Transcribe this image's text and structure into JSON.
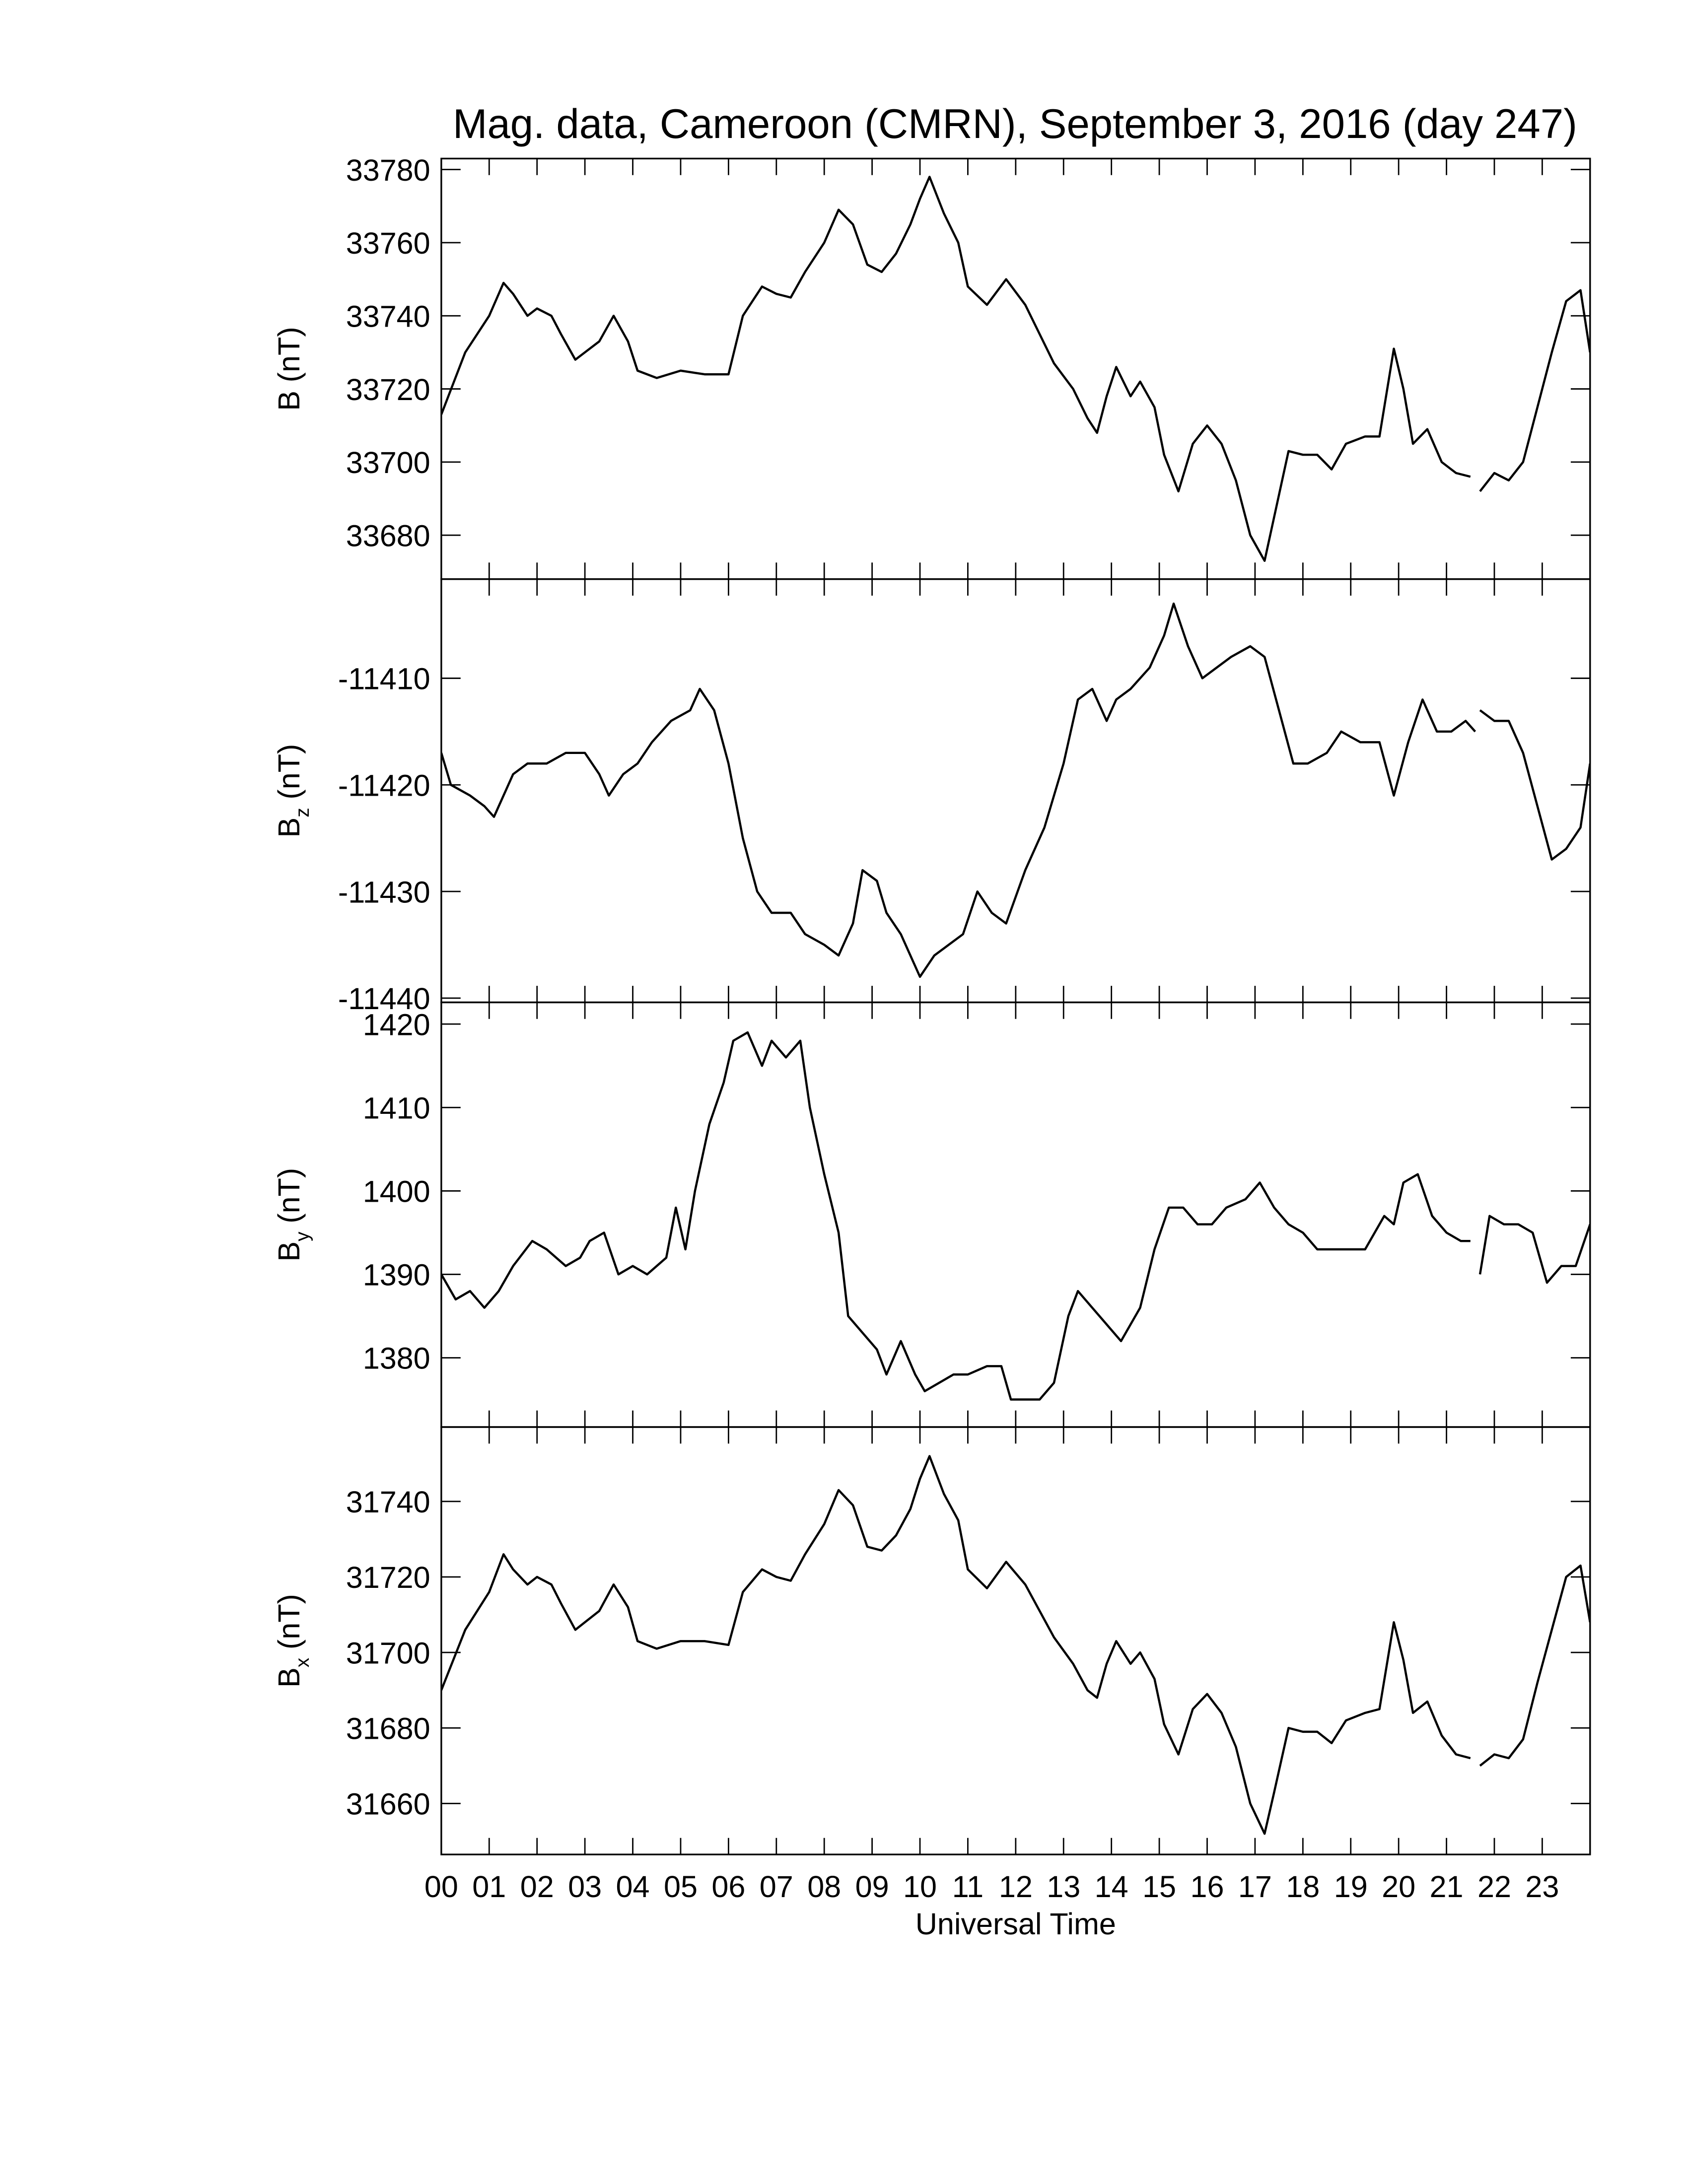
{
  "title": "Mag. data, Cameroon (CMRN), September 3, 2016 (day 247)",
  "chart_data": [
    {
      "type": "line",
      "ylabel_symbol": "B",
      "ylabel_units": "(nT)",
      "xlim": [
        0,
        24
      ],
      "ylim": [
        33668,
        33783
      ],
      "yticks": [
        33680,
        33700,
        33720,
        33740,
        33760,
        33780
      ],
      "color": "#000000",
      "x": [
        0,
        0.5,
        1,
        1.3,
        1.5,
        1.8,
        2.0,
        2.3,
        2.5,
        2.8,
        3.0,
        3.3,
        3.6,
        3.9,
        4.1,
        4.5,
        5.0,
        5.5,
        6.0,
        6.3,
        6.7,
        7.0,
        7.3,
        7.6,
        8.0,
        8.3,
        8.6,
        8.9,
        9.2,
        9.5,
        9.8,
        10.0,
        10.2,
        10.5,
        10.8,
        11.0,
        11.4,
        11.8,
        12.2,
        12.5,
        12.8,
        13.2,
        13.5,
        13.7,
        13.9,
        14.1,
        14.4,
        14.6,
        14.9,
        15.1,
        15.4,
        15.7,
        16.0,
        16.3,
        16.6,
        16.9,
        17.2,
        17.4,
        17.7,
        18.0,
        18.3,
        18.6,
        18.9,
        19.3,
        19.6,
        19.9,
        20.1,
        20.3,
        20.6,
        20.9,
        21.2,
        21.5,
        21.6,
        21.7,
        22.0,
        22.3,
        22.6,
        22.9,
        23.2,
        23.5,
        23.8,
        24.0
      ],
      "values": [
        33713,
        33730,
        33740,
        33749,
        33746,
        33740,
        33742,
        33740,
        33735,
        33728,
        33730,
        33733,
        33740,
        33733,
        33725,
        33723,
        33725,
        33724,
        33724,
        33740,
        33748,
        33746,
        33745,
        33752,
        33760,
        33769,
        33765,
        33754,
        33752,
        33757,
        33765,
        33772,
        33778,
        33768,
        33760,
        33748,
        33743,
        33750,
        33743,
        33735,
        33727,
        33720,
        33712,
        33708,
        33718,
        33726,
        33718,
        33722,
        33715,
        33702,
        33692,
        33705,
        33710,
        33705,
        33695,
        33680,
        33673,
        33685,
        33703,
        33702,
        33702,
        33698,
        33705,
        33707,
        33707,
        33731,
        33720,
        33705,
        33709,
        33700,
        33697,
        33696,
        null,
        33692,
        33697,
        33695,
        33700,
        33715,
        33730,
        33744,
        33747,
        33730
      ]
    },
    {
      "type": "line",
      "ylabel_symbol": "B",
      "ylabel_subscript": "z",
      "ylabel_units": "(nT)",
      "xlim": [
        0,
        24
      ],
      "ylim": [
        -11440.4,
        -11400.7
      ],
      "yticks": [
        -11440,
        -11430,
        -11420,
        -11410
      ],
      "color": "#000000",
      "x": [
        0,
        0.2,
        0.6,
        0.9,
        1.1,
        1.5,
        1.8,
        2.2,
        2.6,
        3.0,
        3.3,
        3.5,
        3.8,
        4.1,
        4.4,
        4.8,
        5.2,
        5.4,
        5.7,
        6.0,
        6.3,
        6.6,
        6.9,
        7.3,
        7.6,
        8.0,
        8.3,
        8.6,
        8.8,
        9.1,
        9.3,
        9.6,
        10.0,
        10.3,
        10.6,
        10.9,
        11.2,
        11.5,
        11.8,
        12.2,
        12.6,
        13.0,
        13.3,
        13.6,
        13.9,
        14.1,
        14.4,
        14.8,
        15.1,
        15.3,
        15.6,
        15.9,
        16.2,
        16.5,
        16.9,
        17.2,
        17.5,
        17.8,
        18.1,
        18.5,
        18.8,
        19.2,
        19.6,
        19.9,
        20.2,
        20.5,
        20.8,
        21.1,
        21.4,
        21.6,
        21.65,
        21.7,
        22.0,
        22.3,
        22.6,
        22.9,
        23.2,
        23.5,
        23.8,
        24.0
      ],
      "values": [
        -11417,
        -11420,
        -11421,
        -11422,
        -11423,
        -11419,
        -11418,
        -11418,
        -11417,
        -11417,
        -11419,
        -11421,
        -11419,
        -11418,
        -11416,
        -11414,
        -11413,
        -11411,
        -11413,
        -11418,
        -11425,
        -11430,
        -11432,
        -11432,
        -11434,
        -11435,
        -11436,
        -11433,
        -11428,
        -11429,
        -11432,
        -11434,
        -11438,
        -11436,
        -11435,
        -11434,
        -11430,
        -11432,
        -11433,
        -11428,
        -11424,
        -11418,
        -11412,
        -11411,
        -11414,
        -11412,
        -11411,
        -11409,
        -11406,
        -11403,
        -11407,
        -11410,
        -11409,
        -11408,
        -11407,
        -11408,
        -11413,
        -11418,
        -11418,
        -11417,
        -11415,
        -11416,
        -11416,
        -11421,
        -11416,
        -11412,
        -11415,
        -11415,
        -11414,
        -11415,
        null,
        -11413,
        -11414,
        -11414,
        -11417,
        -11422,
        -11427,
        -11426,
        -11424,
        -11418
      ]
    },
    {
      "type": "line",
      "ylabel_symbol": "B",
      "ylabel_subscript": "y",
      "ylabel_units": "(nT)",
      "xlim": [
        0,
        24
      ],
      "ylim": [
        1371.7,
        1422.6
      ],
      "yticks": [
        1380,
        1390,
        1400,
        1410,
        1420
      ],
      "color": "#000000",
      "x": [
        0,
        0.3,
        0.6,
        0.9,
        1.2,
        1.5,
        1.9,
        2.2,
        2.6,
        2.9,
        3.1,
        3.4,
        3.7,
        4.0,
        4.3,
        4.7,
        4.9,
        5.1,
        5.3,
        5.6,
        5.9,
        6.1,
        6.4,
        6.7,
        6.9,
        7.2,
        7.5,
        7.7,
        8.0,
        8.3,
        8.5,
        8.8,
        9.1,
        9.3,
        9.6,
        9.9,
        10.1,
        10.4,
        10.7,
        11.0,
        11.4,
        11.7,
        11.9,
        12.2,
        12.5,
        12.8,
        13.1,
        13.3,
        13.6,
        13.9,
        14.2,
        14.6,
        14.9,
        15.2,
        15.5,
        15.8,
        16.1,
        16.4,
        16.8,
        17.1,
        17.4,
        17.7,
        18.0,
        18.3,
        18.6,
        18.9,
        19.3,
        19.7,
        19.9,
        20.1,
        20.4,
        20.7,
        21.0,
        21.3,
        21.5,
        21.6,
        21.7,
        21.9,
        22.2,
        22.5,
        22.8,
        23.1,
        23.4,
        23.7,
        24.0
      ],
      "values": [
        1390,
        1387,
        1388,
        1386,
        1388,
        1391,
        1394,
        1393,
        1391,
        1392,
        1394,
        1395,
        1390,
        1391,
        1390,
        1392,
        1398,
        1393,
        1400,
        1408,
        1413,
        1418,
        1419,
        1415,
        1418,
        1416,
        1418,
        1410,
        1402,
        1395,
        1385,
        1383,
        1381,
        1378,
        1382,
        1378,
        1376,
        1377,
        1378,
        1378,
        1379,
        1379,
        1375,
        1375,
        1375,
        1377,
        1385,
        1388,
        1386,
        1384,
        1382,
        1386,
        1393,
        1398,
        1398,
        1396,
        1396,
        1398,
        1399,
        1401,
        1398,
        1396,
        1395,
        1393,
        1393,
        1393,
        1393,
        1397,
        1396,
        1401,
        1402,
        1397,
        1395,
        1394,
        1394,
        null,
        1390,
        1397,
        1396,
        1396,
        1395,
        1389,
        1391,
        1391,
        1396
      ]
    },
    {
      "type": "line",
      "ylabel_symbol": "B",
      "ylabel_subscript": "x",
      "ylabel_units": "(nT)",
      "xlabel": "Universal Time",
      "xlim": [
        0,
        24
      ],
      "ylim": [
        31646.5,
        31759.7
      ],
      "yticks": [
        31660,
        31680,
        31700,
        31720,
        31740
      ],
      "xticks": [
        {
          "value": 0,
          "label": "00"
        },
        {
          "value": 1,
          "label": "01"
        },
        {
          "value": 2,
          "label": "02"
        },
        {
          "value": 3,
          "label": "03"
        },
        {
          "value": 4,
          "label": "04"
        },
        {
          "value": 5,
          "label": "05"
        },
        {
          "value": 6,
          "label": "06"
        },
        {
          "value": 7,
          "label": "07"
        },
        {
          "value": 8,
          "label": "08"
        },
        {
          "value": 9,
          "label": "09"
        },
        {
          "value": 10,
          "label": "10"
        },
        {
          "value": 11,
          "label": "11"
        },
        {
          "value": 12,
          "label": "12"
        },
        {
          "value": 13,
          "label": "13"
        },
        {
          "value": 14,
          "label": "14"
        },
        {
          "value": 15,
          "label": "15"
        },
        {
          "value": 16,
          "label": "16"
        },
        {
          "value": 17,
          "label": "17"
        },
        {
          "value": 18,
          "label": "18"
        },
        {
          "value": 19,
          "label": "19"
        },
        {
          "value": 20,
          "label": "20"
        },
        {
          "value": 21,
          "label": "21"
        },
        {
          "value": 22,
          "label": "22"
        },
        {
          "value": 23,
          "label": "23"
        }
      ],
      "color": "#000000",
      "x": [
        0,
        0.5,
        1,
        1.3,
        1.5,
        1.8,
        2.0,
        2.3,
        2.5,
        2.8,
        3.0,
        3.3,
        3.6,
        3.9,
        4.1,
        4.5,
        5.0,
        5.5,
        6.0,
        6.3,
        6.7,
        7.0,
        7.3,
        7.6,
        8.0,
        8.3,
        8.6,
        8.9,
        9.2,
        9.5,
        9.8,
        10.0,
        10.2,
        10.5,
        10.8,
        11.0,
        11.4,
        11.8,
        12.2,
        12.5,
        12.8,
        13.2,
        13.5,
        13.7,
        13.9,
        14.1,
        14.4,
        14.6,
        14.9,
        15.1,
        15.4,
        15.7,
        16.0,
        16.3,
        16.6,
        16.9,
        17.2,
        17.4,
        17.7,
        18.0,
        18.3,
        18.6,
        18.9,
        19.3,
        19.6,
        19.9,
        20.1,
        20.3,
        20.6,
        20.9,
        21.2,
        21.5,
        21.6,
        21.7,
        22.0,
        22.3,
        22.6,
        22.9,
        23.2,
        23.5,
        23.8,
        24.0
      ],
      "values": [
        31690,
        31706,
        31716,
        31726,
        31722,
        31718,
        31720,
        31718,
        31713,
        31706,
        31708,
        31711,
        31718,
        31712,
        31703,
        31701,
        31703,
        31703,
        31702,
        31716,
        31722,
        31720,
        31719,
        31726,
        31734,
        31743,
        31739,
        31728,
        31727,
        31731,
        31738,
        31746,
        31752,
        31742,
        31735,
        31722,
        31717,
        31724,
        31718,
        31711,
        31704,
        31697,
        31690,
        31688,
        31697,
        31703,
        31697,
        31700,
        31693,
        31681,
        31673,
        31685,
        31689,
        31684,
        31675,
        31660,
        31652,
        31663,
        31680,
        31679,
        31679,
        31676,
        31682,
        31684,
        31685,
        31708,
        31698,
        31684,
        31687,
        31678,
        31673,
        31672,
        null,
        31670,
        31673,
        31672,
        31677,
        31692,
        31706,
        31720,
        31723,
        31708
      ]
    }
  ]
}
